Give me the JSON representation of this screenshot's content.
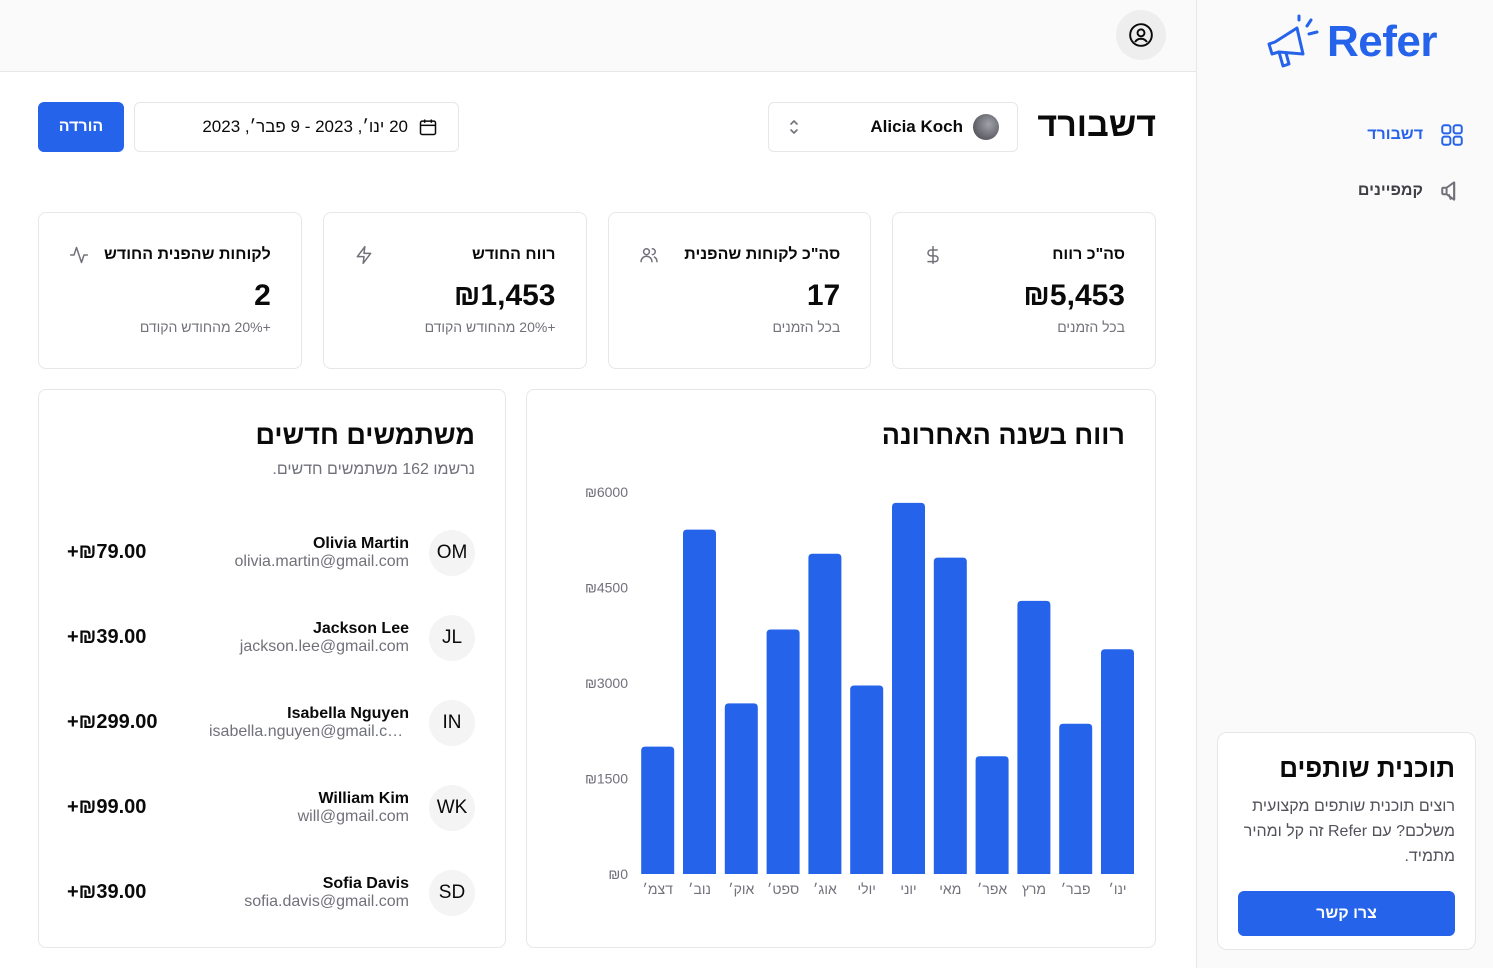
{
  "brand": {
    "name": "Refer",
    "color": "#2563eb"
  },
  "sidebar": {
    "items": [
      {
        "label": "דשבורד",
        "icon": "dashboard-grid-icon",
        "active": true
      },
      {
        "label": "קמפיינים",
        "icon": "megaphone-icon",
        "active": false
      }
    ],
    "promo": {
      "title": "תוכנית שותפים",
      "text": "רוצים תוכנית שותפים מקצועית משלכם? עם Refer זה קל ומהיר מתמיד.",
      "button": "צרו קשר"
    }
  },
  "header": {
    "title": "דשבורד",
    "account": "Alicia Koch",
    "date_range": "20 ינו׳, 2023 - 9 פבר׳, 2023",
    "download": "הורדה"
  },
  "stats": [
    {
      "title": "סה\"כ רווח",
      "value": "₪5,453",
      "sub": "בכל הזמנים",
      "icon": "dollar-icon"
    },
    {
      "title": "סה\"כ לקוחות שהפנית",
      "value": "17",
      "sub": "בכל הזמנים",
      "icon": "users-icon"
    },
    {
      "title": "רווח החודש",
      "value": "₪1,453",
      "sub": "+20% מהחודש הקודם",
      "icon": "zap-icon"
    },
    {
      "title": "לקוחות שהפנית החודש",
      "value": "2",
      "sub": "+20% מהחודש הקודם",
      "icon": "activity-icon"
    }
  ],
  "chart": {
    "title": "רווח בשנה האחרונה"
  },
  "chart_data": {
    "type": "bar",
    "title": "רווח בשנה האחרונה",
    "categories": [
      "ינו׳",
      "פבר׳",
      "מרץ",
      "אפר׳",
      "מאי",
      "יוני",
      "יולי",
      "אוג׳",
      "ספט׳",
      "אוק׳",
      "נוב׳",
      "דצמ׳"
    ],
    "values": [
      3530,
      2360,
      4290,
      1850,
      4970,
      5830,
      2960,
      5030,
      3840,
      2680,
      5410,
      2000
    ],
    "yticks": [
      "₪0",
      "₪1500",
      "₪3000",
      "₪4500",
      "₪6000"
    ],
    "ylim": [
      0,
      6000
    ],
    "color": "#2563eb",
    "grid": false
  },
  "users": {
    "title": "משתמשים חדשים",
    "subtitle": "נרשמו 162 משתמשים חדשים.",
    "list": [
      {
        "initials": "OM",
        "name": "Olivia Martin",
        "email": "olivia.martin@gmail.com",
        "amount": "+₪79.00"
      },
      {
        "initials": "JL",
        "name": "Jackson Lee",
        "email": "jackson.lee@gmail.com",
        "amount": "+₪39.00"
      },
      {
        "initials": "IN",
        "name": "Isabella Nguyen",
        "email": "isabella.nguyen@gmail.com",
        "amount": "+₪299.00"
      },
      {
        "initials": "WK",
        "name": "William Kim",
        "email": "will@gmail.com",
        "amount": "+₪99.00"
      },
      {
        "initials": "SD",
        "name": "Sofia Davis",
        "email": "sofia.davis@gmail.com",
        "amount": "+₪39.00"
      }
    ]
  }
}
